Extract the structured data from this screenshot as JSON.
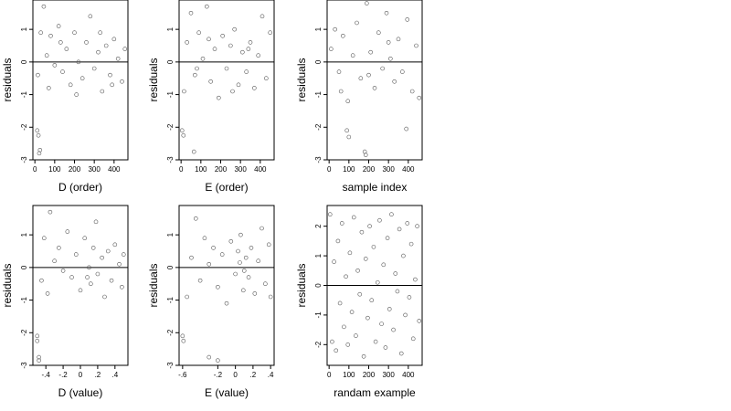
{
  "figure": {
    "background": "#ffffff",
    "point_color": "#555555",
    "line_color": "#000000"
  },
  "chart_data": [
    {
      "id": "D_order",
      "type": "scatter",
      "xlabel": "D (order)",
      "ylabel": "residuals",
      "x_ticks": [
        0,
        100,
        200,
        300,
        400
      ],
      "y_ticks": [
        -3,
        -2,
        -1,
        0,
        1
      ],
      "xlim": [
        -10,
        470
      ],
      "ylim": [
        -3.0,
        1.9
      ],
      "reference_line_y": 0,
      "grid": false,
      "points": [
        [
          12,
          -2.1
        ],
        [
          18,
          -2.25
        ],
        [
          22,
          -2.8
        ],
        [
          26,
          -2.7
        ],
        [
          15,
          -0.4
        ],
        [
          30,
          0.9
        ],
        [
          45,
          1.7
        ],
        [
          60,
          0.2
        ],
        [
          80,
          0.8
        ],
        [
          100,
          -0.1
        ],
        [
          120,
          1.1
        ],
        [
          140,
          -0.3
        ],
        [
          160,
          0.4
        ],
        [
          180,
          -0.7
        ],
        [
          200,
          0.9
        ],
        [
          220,
          0.0
        ],
        [
          240,
          -0.5
        ],
        [
          260,
          0.6
        ],
        [
          280,
          1.4
        ],
        [
          300,
          -0.2
        ],
        [
          320,
          0.3
        ],
        [
          340,
          -0.9
        ],
        [
          360,
          0.5
        ],
        [
          380,
          -0.4
        ],
        [
          400,
          0.7
        ],
        [
          420,
          0.1
        ],
        [
          440,
          -0.6
        ],
        [
          455,
          0.4
        ],
        [
          70,
          -0.8
        ],
        [
          130,
          0.6
        ],
        [
          210,
          -1.0
        ],
        [
          330,
          0.9
        ],
        [
          390,
          -0.7
        ]
      ]
    },
    {
      "id": "E_order",
      "type": "scatter",
      "xlabel": "E (order)",
      "ylabel": "residuals",
      "x_ticks": [
        0,
        100,
        200,
        300,
        400
      ],
      "y_ticks": [
        -3,
        -2,
        -1,
        0,
        1
      ],
      "xlim": [
        -10,
        470
      ],
      "ylim": [
        -3.0,
        1.9
      ],
      "reference_line_y": 0,
      "grid": false,
      "points": [
        [
          5,
          -2.1
        ],
        [
          12,
          -2.25
        ],
        [
          65,
          -2.75
        ],
        [
          15,
          -0.9
        ],
        [
          30,
          0.6
        ],
        [
          50,
          1.5
        ],
        [
          70,
          -0.4
        ],
        [
          90,
          0.9
        ],
        [
          110,
          0.1
        ],
        [
          130,
          1.7
        ],
        [
          150,
          -0.6
        ],
        [
          170,
          0.4
        ],
        [
          190,
          -1.1
        ],
        [
          210,
          0.8
        ],
        [
          230,
          -0.2
        ],
        [
          250,
          0.5
        ],
        [
          270,
          1.0
        ],
        [
          290,
          -0.7
        ],
        [
          310,
          0.3
        ],
        [
          330,
          -0.3
        ],
        [
          350,
          0.6
        ],
        [
          370,
          -0.8
        ],
        [
          390,
          0.2
        ],
        [
          410,
          1.4
        ],
        [
          430,
          -0.5
        ],
        [
          450,
          0.9
        ],
        [
          80,
          -0.2
        ],
        [
          140,
          0.7
        ],
        [
          260,
          -0.9
        ],
        [
          340,
          0.4
        ]
      ]
    },
    {
      "id": "sample_index",
      "type": "scatter",
      "xlabel": "sample index",
      "ylabel": "residuals",
      "x_ticks": [
        0,
        100,
        200,
        300,
        400
      ],
      "y_ticks": [
        -3,
        -2,
        -1,
        0,
        1
      ],
      "xlim": [
        -10,
        470
      ],
      "ylim": [
        -3.0,
        1.9
      ],
      "reference_line_y": 0,
      "grid": false,
      "points": [
        [
          90,
          -2.1
        ],
        [
          100,
          -2.3
        ],
        [
          180,
          -2.75
        ],
        [
          185,
          -2.85
        ],
        [
          390,
          -2.05
        ],
        [
          10,
          0.4
        ],
        [
          30,
          1.0
        ],
        [
          50,
          -0.3
        ],
        [
          70,
          0.8
        ],
        [
          95,
          -1.2
        ],
        [
          120,
          0.2
        ],
        [
          140,
          1.2
        ],
        [
          160,
          -0.5
        ],
        [
          190,
          1.8
        ],
        [
          210,
          0.3
        ],
        [
          230,
          -0.8
        ],
        [
          250,
          0.9
        ],
        [
          270,
          -0.2
        ],
        [
          290,
          1.5
        ],
        [
          310,
          0.1
        ],
        [
          330,
          -0.6
        ],
        [
          350,
          0.7
        ],
        [
          370,
          -0.3
        ],
        [
          395,
          1.3
        ],
        [
          420,
          -0.9
        ],
        [
          440,
          0.5
        ],
        [
          455,
          -1.1
        ],
        [
          60,
          -0.9
        ],
        [
          200,
          -0.4
        ],
        [
          300,
          0.6
        ]
      ]
    },
    {
      "id": "D_value",
      "type": "scatter",
      "xlabel": "D (value)",
      "ylabel": "residuals",
      "x_ticks": [
        -0.4,
        -0.2,
        0.0,
        0.2,
        0.4
      ],
      "y_ticks": [
        -3,
        -2,
        -1,
        0,
        1
      ],
      "xlim": [
        -0.55,
        0.55
      ],
      "ylim": [
        -3.0,
        1.9
      ],
      "reference_line_y": 0,
      "grid": false,
      "points": [
        [
          -0.5,
          -2.1
        ],
        [
          -0.5,
          -2.25
        ],
        [
          -0.48,
          -2.75
        ],
        [
          -0.48,
          -2.85
        ],
        [
          -0.45,
          -0.4
        ],
        [
          -0.42,
          0.9
        ],
        [
          -0.35,
          1.7
        ],
        [
          -0.3,
          0.2
        ],
        [
          -0.25,
          0.6
        ],
        [
          -0.2,
          -0.1
        ],
        [
          -0.15,
          1.1
        ],
        [
          -0.1,
          -0.3
        ],
        [
          -0.05,
          0.4
        ],
        [
          0.0,
          -0.7
        ],
        [
          0.05,
          0.9
        ],
        [
          0.1,
          0.0
        ],
        [
          0.12,
          -0.5
        ],
        [
          0.15,
          0.6
        ],
        [
          0.18,
          1.4
        ],
        [
          0.2,
          -0.2
        ],
        [
          0.25,
          0.3
        ],
        [
          0.28,
          -0.9
        ],
        [
          0.32,
          0.5
        ],
        [
          0.36,
          -0.4
        ],
        [
          0.4,
          0.7
        ],
        [
          0.45,
          0.1
        ],
        [
          0.48,
          -0.6
        ],
        [
          0.5,
          0.4
        ],
        [
          -0.38,
          -0.8
        ],
        [
          0.08,
          -0.3
        ]
      ]
    },
    {
      "id": "E_value",
      "type": "scatter",
      "xlabel": "E (value)",
      "ylabel": "residuals",
      "x_ticks": [
        -0.6,
        -0.2,
        0.0,
        0.2,
        0.4
      ],
      "y_ticks": [
        -3,
        -2,
        -1,
        0,
        1
      ],
      "xlim": [
        -0.64,
        0.44
      ],
      "ylim": [
        -3.0,
        1.9
      ],
      "reference_line_y": 0,
      "grid": false,
      "points": [
        [
          -0.6,
          -2.1
        ],
        [
          -0.59,
          -2.25
        ],
        [
          -0.3,
          -2.75
        ],
        [
          -0.2,
          -2.85
        ],
        [
          -0.55,
          -0.9
        ],
        [
          -0.5,
          0.3
        ],
        [
          -0.45,
          1.5
        ],
        [
          -0.4,
          -0.4
        ],
        [
          -0.35,
          0.9
        ],
        [
          -0.3,
          0.1
        ],
        [
          -0.25,
          0.6
        ],
        [
          -0.2,
          -0.6
        ],
        [
          -0.15,
          0.4
        ],
        [
          -0.1,
          -1.1
        ],
        [
          -0.05,
          0.8
        ],
        [
          0.0,
          -0.2
        ],
        [
          0.03,
          0.5
        ],
        [
          0.06,
          1.0
        ],
        [
          0.09,
          -0.7
        ],
        [
          0.12,
          0.3
        ],
        [
          0.15,
          -0.3
        ],
        [
          0.18,
          0.6
        ],
        [
          0.22,
          -0.8
        ],
        [
          0.26,
          0.2
        ],
        [
          0.3,
          1.2
        ],
        [
          0.34,
          -0.5
        ],
        [
          0.38,
          0.7
        ],
        [
          0.4,
          -0.9
        ],
        [
          0.05,
          0.15
        ],
        [
          0.1,
          -0.1
        ]
      ]
    },
    {
      "id": "randam_example",
      "type": "scatter",
      "xlabel": "randam example",
      "ylabel": "residuals",
      "x_ticks": [
        0,
        100,
        200,
        300,
        400
      ],
      "y_ticks": [
        -2,
        -1,
        0,
        1,
        2
      ],
      "xlim": [
        -10,
        470
      ],
      "ylim": [
        -2.7,
        2.7
      ],
      "reference_line_y": 0,
      "grid": false,
      "points": [
        [
          5,
          2.4
        ],
        [
          15,
          -1.9
        ],
        [
          25,
          0.8
        ],
        [
          35,
          -2.2
        ],
        [
          45,
          1.5
        ],
        [
          55,
          -0.6
        ],
        [
          65,
          2.1
        ],
        [
          75,
          -1.4
        ],
        [
          85,
          0.3
        ],
        [
          95,
          -2.0
        ],
        [
          105,
          1.1
        ],
        [
          115,
          -0.9
        ],
        [
          125,
          2.3
        ],
        [
          135,
          -1.7
        ],
        [
          145,
          0.5
        ],
        [
          155,
          -0.3
        ],
        [
          165,
          1.8
        ],
        [
          175,
          -2.4
        ],
        [
          185,
          0.9
        ],
        [
          195,
          -1.1
        ],
        [
          205,
          2.0
        ],
        [
          215,
          -0.5
        ],
        [
          225,
          1.3
        ],
        [
          235,
          -1.9
        ],
        [
          245,
          0.1
        ],
        [
          255,
          2.2
        ],
        [
          265,
          -1.3
        ],
        [
          275,
          0.7
        ],
        [
          285,
          -2.1
        ],
        [
          295,
          1.6
        ],
        [
          305,
          -0.8
        ],
        [
          315,
          2.4
        ],
        [
          325,
          -1.5
        ],
        [
          335,
          0.4
        ],
        [
          345,
          -0.2
        ],
        [
          355,
          1.9
        ],
        [
          365,
          -2.3
        ],
        [
          375,
          1.0
        ],
        [
          385,
          -1.0
        ],
        [
          395,
          2.1
        ],
        [
          405,
          -0.4
        ],
        [
          415,
          1.4
        ],
        [
          425,
          -1.8
        ],
        [
          435,
          0.2
        ],
        [
          445,
          2.0
        ],
        [
          455,
          -1.2
        ]
      ]
    }
  ]
}
